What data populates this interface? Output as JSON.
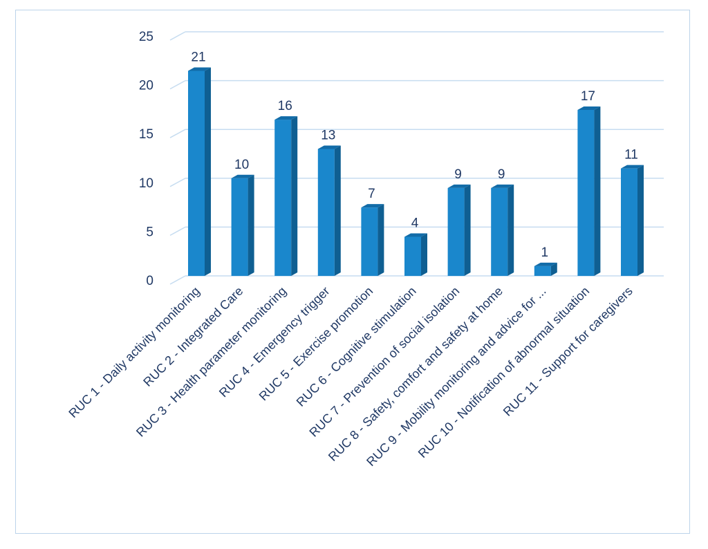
{
  "chart_data": {
    "type": "bar",
    "categories": [
      "RUC 1 - Daily activity monitoring",
      "RUC 2 -  Integrated Care",
      "RUC 3 - Health parameter monitoring",
      "RUC 4 -  Emergency trigger",
      "RUC 5 - Exercise promotion",
      "RUC 6 - Cognitive stimulation",
      "RUC 7 - Prevention of social isolation",
      "RUC 8 - Safety, comfort and safety at home",
      "RUC 9 - Mobility monitoring and advice for ...",
      "RUC 10 - Notification of abnormal situation",
      "RUC 11 - Support for caregivers"
    ],
    "values": [
      21,
      10,
      16,
      13,
      7,
      4,
      9,
      9,
      1,
      17,
      11
    ],
    "title": "",
    "xlabel": "",
    "ylabel": "",
    "ylim": [
      0,
      25
    ],
    "yticks": [
      "0",
      "5",
      "10",
      "15",
      "20",
      "25"
    ],
    "grid": true,
    "legend": "none",
    "colors": {
      "bar_front": "#1a87cc",
      "bar_side": "#0f5f92",
      "bar_top": "#126ca8",
      "grid": "#c6dcf0",
      "text": "#1f3864",
      "border": "#bcd3ea"
    }
  }
}
